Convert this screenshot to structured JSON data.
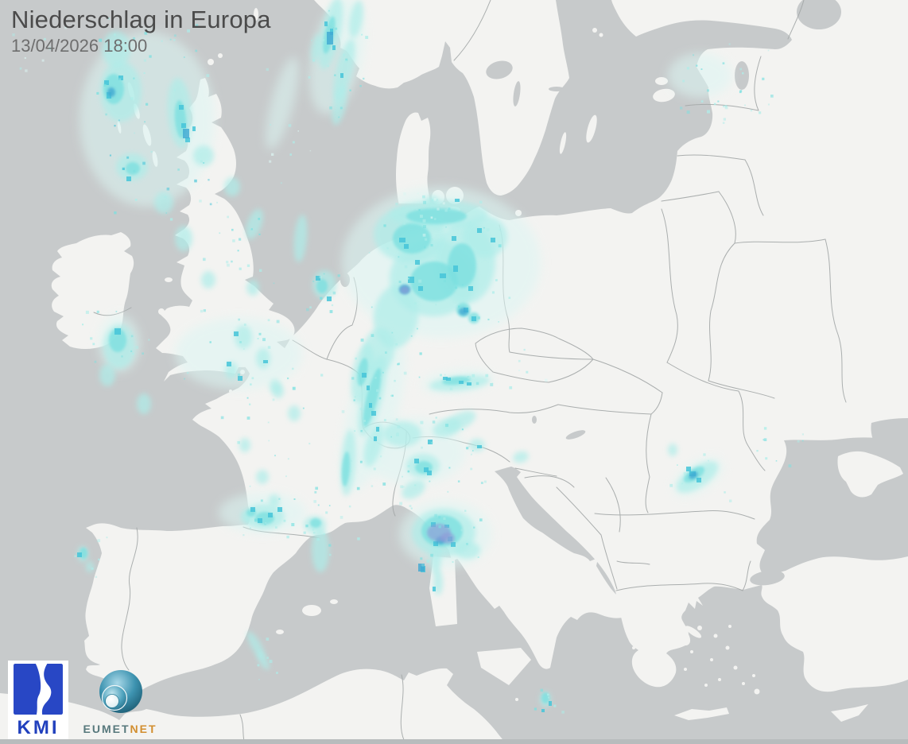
{
  "header": {
    "title": "Niederschlag in Europa",
    "timestamp": "13/04/2026 18:00"
  },
  "logos": {
    "kmi": {
      "label": "KMI",
      "blue": "#2847c5",
      "text_blue": "#2140bd"
    },
    "eumetnet": {
      "label_left": "EUMET",
      "label_right": "NET",
      "teal": "#57787c",
      "orange": "#d28e2f",
      "sphere_dark": "#256d86",
      "sphere_mid": "#3d93b0",
      "sphere_light": "#a8d8e8"
    }
  },
  "map": {
    "kind": "precipitation-radar",
    "region": "Europe",
    "colors": {
      "sea": "#c7cacb",
      "land": "#f3f3f1",
      "border": "#a3a7a7",
      "bottom_strip": "#b8bcbd",
      "precip_levels": [
        "#dcf6f3",
        "#aeede9",
        "#7ce0e0",
        "#45c4d8",
        "#3fa8d2",
        "#8f9bd8"
      ]
    },
    "precipitation_cells": [
      [
        555,
        330,
        125,
        95,
        0,
        1
      ],
      [
        470,
        515,
        30,
        105,
        15,
        1
      ],
      [
        560,
        672,
        58,
        42,
        0,
        1
      ],
      [
        424,
        70,
        32,
        75,
        12,
        1
      ],
      [
        185,
        150,
        85,
        110,
        0,
        1
      ],
      [
        520,
        568,
        65,
        42,
        0,
        1
      ],
      [
        355,
        130,
        14,
        60,
        15,
        1
      ],
      [
        150,
        432,
        26,
        36,
        0,
        1
      ],
      [
        300,
        445,
        80,
        45,
        0,
        1
      ],
      [
        330,
        645,
        55,
        25,
        0,
        1
      ],
      [
        878,
        600,
        35,
        18,
        -33,
        1
      ],
      [
        880,
        95,
        40,
        28,
        0,
        1
      ],
      [
        575,
        480,
        45,
        14,
        -6,
        1
      ],
      [
        515,
        295,
        45,
        35,
        0,
        2
      ],
      [
        545,
        350,
        55,
        48,
        0,
        2
      ],
      [
        585,
        330,
        38,
        52,
        0,
        2
      ],
      [
        610,
        298,
        28,
        26,
        0,
        2
      ],
      [
        552,
        270,
        62,
        18,
        0,
        2
      ],
      [
        498,
        398,
        28,
        40,
        8,
        2
      ],
      [
        476,
        442,
        20,
        30,
        10,
        2
      ],
      [
        378,
        300,
        8,
        30,
        5,
        2
      ],
      [
        408,
        358,
        15,
        18,
        0,
        2
      ],
      [
        416,
        42,
        12,
        46,
        12,
        2
      ],
      [
        433,
        88,
        10,
        40,
        14,
        2
      ],
      [
        448,
        24,
        8,
        24,
        10,
        2
      ],
      [
        427,
        132,
        8,
        26,
        12,
        2
      ],
      [
        398,
        60,
        6,
        18,
        10,
        2
      ],
      [
        152,
        115,
        26,
        38,
        0,
        2
      ],
      [
        226,
        142,
        15,
        44,
        -4,
        2
      ],
      [
        166,
        210,
        20,
        17,
        0,
        2
      ],
      [
        146,
        62,
        18,
        23,
        0,
        2
      ],
      [
        256,
        196,
        13,
        13,
        0,
        2
      ],
      [
        231,
        300,
        11,
        16,
        0,
        2
      ],
      [
        320,
        282,
        9,
        20,
        20,
        2
      ],
      [
        292,
        235,
        10,
        12,
        0,
        2
      ],
      [
        206,
        255,
        12,
        14,
        0,
        2
      ],
      [
        150,
        436,
        20,
        28,
        0,
        2
      ],
      [
        135,
        472,
        10,
        14,
        0,
        2
      ],
      [
        306,
        424,
        11,
        15,
        0,
        2
      ],
      [
        331,
        451,
        9,
        13,
        0,
        2
      ],
      [
        291,
        466,
        8,
        11,
        0,
        2
      ],
      [
        346,
        486,
        7,
        9,
        0,
        2
      ],
      [
        262,
        352,
        9,
        11,
        0,
        2
      ],
      [
        318,
        362,
        8,
        10,
        0,
        2
      ],
      [
        456,
        470,
        13,
        38,
        10,
        2
      ],
      [
        468,
        498,
        13,
        52,
        14,
        2
      ],
      [
        438,
        582,
        9,
        42,
        4,
        2
      ],
      [
        470,
        560,
        10,
        28,
        16,
        2
      ],
      [
        403,
        692,
        11,
        28,
        0,
        2
      ],
      [
        332,
        650,
        26,
        16,
        0,
        2
      ],
      [
        396,
        660,
        14,
        11,
        0,
        2
      ],
      [
        370,
        520,
        8,
        10,
        0,
        2
      ],
      [
        350,
        492,
        7,
        9,
        0,
        2
      ],
      [
        308,
        560,
        7,
        9,
        0,
        2
      ],
      [
        330,
        600,
        8,
        9,
        0,
        2
      ],
      [
        345,
        630,
        7,
        8,
        0,
        2
      ],
      [
        310,
        650,
        7,
        8,
        0,
        2
      ],
      [
        506,
        546,
        24,
        16,
        0,
        2
      ],
      [
        532,
        586,
        21,
        15,
        0,
        2
      ],
      [
        562,
        538,
        18,
        11,
        -20,
        2
      ],
      [
        578,
        530,
        22,
        10,
        -25,
        2
      ],
      [
        600,
        560,
        10,
        8,
        0,
        2
      ],
      [
        520,
        616,
        16,
        10,
        -30,
        2
      ],
      [
        655,
        575,
        10,
        7,
        -15,
        2
      ],
      [
        578,
        482,
        38,
        9,
        -6,
        2
      ],
      [
        558,
        670,
        40,
        30,
        0,
        2
      ],
      [
        588,
        692,
        16,
        11,
        0,
        2
      ],
      [
        548,
        700,
        7,
        24,
        0,
        2
      ],
      [
        551,
        733,
        6,
        16,
        0,
        2
      ],
      [
        322,
        812,
        6,
        20,
        -30,
        2
      ],
      [
        331,
        831,
        5,
        13,
        -30,
        2
      ],
      [
        104,
        697,
        7,
        10,
        0,
        2
      ],
      [
        113,
        713,
        5,
        7,
        0,
        2
      ],
      [
        181,
        508,
        9,
        13,
        0,
        2
      ],
      [
        877,
        600,
        30,
        13,
        -33,
        2
      ],
      [
        846,
        566,
        6,
        8,
        0,
        2
      ],
      [
        520,
        286,
        15,
        9,
        -20,
        2
      ],
      [
        543,
        256,
        9,
        10,
        0,
        2
      ],
      [
        686,
        880,
        7,
        10,
        0,
        2
      ],
      [
        518,
        300,
        24,
        19,
        0,
        3
      ],
      [
        546,
        354,
        30,
        25,
        0,
        3
      ],
      [
        581,
        334,
        18,
        28,
        0,
        3
      ],
      [
        549,
        272,
        38,
        10,
        0,
        3
      ],
      [
        556,
        668,
        26,
        20,
        0,
        3
      ],
      [
        148,
        428,
        11,
        15,
        0,
        3
      ],
      [
        143,
        112,
        13,
        19,
        0,
        3
      ],
      [
        227,
        150,
        7,
        24,
        -4,
        3
      ],
      [
        468,
        500,
        7,
        38,
        14,
        3
      ],
      [
        456,
        468,
        6,
        18,
        10,
        3
      ],
      [
        533,
        588,
        11,
        8,
        0,
        3
      ],
      [
        873,
        597,
        15,
        7,
        -33,
        3
      ],
      [
        414,
        44,
        6,
        24,
        12,
        3
      ],
      [
        397,
        658,
        7,
        6,
        0,
        3
      ],
      [
        316,
        645,
        6,
        5,
        0,
        3
      ],
      [
        105,
        696,
        5,
        7,
        0,
        3
      ],
      [
        686,
        878,
        5,
        7,
        0,
        3
      ],
      [
        574,
        479,
        18,
        5,
        -6,
        3
      ],
      [
        405,
        360,
        7,
        9,
        0,
        3
      ],
      [
        167,
        212,
        9,
        8,
        0,
        3
      ],
      [
        435,
        590,
        5,
        22,
        4,
        3
      ],
      [
        333,
        652,
        12,
        8,
        0,
        3
      ],
      [
        583,
        390,
        9,
        9,
        0,
        3
      ],
      [
        596,
        400,
        7,
        7,
        0,
        3
      ],
      [
        506,
        302,
        4,
        3,
        0,
        4
      ],
      [
        517,
        352,
        4,
        4,
        0,
        4
      ],
      [
        529,
        363,
        3,
        3,
        0,
        4
      ],
      [
        573,
        338,
        3,
        4,
        0,
        4
      ],
      [
        586,
        390,
        3,
        3,
        0,
        4
      ],
      [
        596,
        401,
        3,
        3,
        0,
        4
      ],
      [
        620,
        302,
        3,
        3,
        0,
        4
      ],
      [
        575,
        252,
        3,
        2,
        0,
        4
      ],
      [
        414,
        376,
        3,
        3,
        0,
        4
      ],
      [
        288,
        458,
        3,
        3,
        0,
        4
      ],
      [
        302,
        476,
        3,
        3,
        0,
        4
      ],
      [
        541,
        556,
        3,
        3,
        0,
        4
      ],
      [
        536,
        591,
        3,
        3,
        0,
        4
      ],
      [
        532,
        716,
        3,
        4,
        0,
        4
      ],
      [
        871,
        596,
        4,
        3,
        0,
        4
      ],
      [
        879,
        604,
        3,
        3,
        0,
        4
      ],
      [
        318,
        641,
        3,
        3,
        0,
        4
      ],
      [
        352,
        641,
        3,
        3,
        0,
        4
      ],
      [
        100,
        698,
        3,
        3,
        0,
        4
      ],
      [
        692,
        885,
        2,
        3,
        0,
        4
      ],
      [
        683,
        894,
        2,
        2,
        0,
        4
      ],
      [
        566,
        678,
        3,
        3,
        0,
        4
      ],
      [
        137,
        120,
        3,
        4,
        0,
        4
      ],
      [
        231,
        158,
        3,
        3,
        0,
        4
      ],
      [
        236,
        176,
        3,
        3,
        0,
        4
      ],
      [
        148,
        417,
        4,
        4,
        0,
        4
      ],
      [
        564,
        477,
        3,
        2,
        0,
        4
      ],
      [
        590,
        483,
        3,
        2,
        0,
        4
      ],
      [
        228,
        135,
        3,
        3,
        0,
        4
      ],
      [
        244,
        162,
        2,
        3,
        0,
        4
      ],
      [
        134,
        104,
        3,
        3,
        0,
        4
      ],
      [
        458,
        472,
        3,
        3,
        0,
        4
      ],
      [
        470,
        520,
        3,
        3,
        0,
        4
      ],
      [
        475,
        540,
        2,
        3,
        0,
        4
      ],
      [
        410,
        30,
        2,
        3,
        0,
        4
      ],
      [
        420,
        60,
        2,
        3,
        0,
        4
      ],
      [
        546,
        741,
        2,
        3,
        0,
        4
      ],
      [
        297,
        420,
        3,
        3,
        0,
        4
      ],
      [
        334,
        455,
        3,
        2,
        0,
        4
      ],
      [
        152,
        98,
        3,
        3,
        0,
        4
      ],
      [
        162,
        225,
        3,
        3,
        0,
        4
      ],
      [
        417,
        40,
        2,
        4,
        0,
        4
      ],
      [
        430,
        95,
        2,
        3,
        0,
        4
      ],
      [
        511,
        310,
        3,
        3,
        0,
        4
      ],
      [
        525,
        330,
        3,
        3,
        0,
        4
      ],
      [
        557,
        347,
        4,
        3,
        0,
        4
      ],
      [
        592,
        363,
        3,
        3,
        0,
        4
      ],
      [
        603,
        290,
        3,
        3,
        0,
        4
      ],
      [
        571,
        300,
        3,
        3,
        0,
        4
      ],
      [
        463,
        488,
        2,
        3,
        0,
        4
      ],
      [
        466,
        510,
        2,
        3,
        0,
        4
      ],
      [
        472,
        552,
        2,
        3,
        0,
        4
      ],
      [
        400,
        350,
        3,
        3,
        0,
        4
      ],
      [
        866,
        590,
        3,
        3,
        0,
        4
      ],
      [
        524,
        580,
        3,
        3,
        0,
        4
      ],
      [
        540,
        595,
        3,
        3,
        0,
        4
      ],
      [
        603,
        562,
        3,
        2,
        0,
        4
      ],
      [
        545,
        660,
        3,
        3,
        0,
        4
      ],
      [
        562,
        662,
        3,
        2,
        0,
        4
      ],
      [
        570,
        685,
        3,
        3,
        0,
        4
      ],
      [
        548,
        684,
        3,
        3,
        0,
        4
      ],
      [
        327,
        655,
        3,
        3,
        0,
        4
      ],
      [
        340,
        648,
        3,
        3,
        0,
        4
      ],
      [
        560,
        476,
        3,
        2,
        0,
        4
      ],
      [
        580,
        481,
        3,
        2,
        0,
        4
      ],
      [
        509,
        364,
        7,
        6,
        0,
        5
      ],
      [
        583,
        392,
        6,
        5,
        0,
        5
      ],
      [
        530,
        714,
        4,
        5,
        0,
        5
      ],
      [
        234,
        168,
        4,
        6,
        0,
        5
      ],
      [
        140,
        116,
        5,
        6,
        0,
        5
      ],
      [
        872,
        598,
        6,
        4,
        -33,
        5
      ],
      [
        415,
        48,
        4,
        8,
        12,
        5
      ],
      [
        554,
        680,
        6,
        5,
        0,
        5
      ],
      [
        552,
        670,
        15,
        11,
        0,
        6
      ],
      [
        563,
        677,
        9,
        7,
        0,
        6
      ],
      [
        509,
        365,
        6,
        5,
        0,
        6
      ]
    ],
    "speckle_regions": [
      [
        10,
        30,
        85,
        65,
        10,
        [
          1,
          2
        ]
      ],
      [
        120,
        20,
        140,
        130,
        26,
        [
          2,
          3
        ]
      ],
      [
        130,
        150,
        140,
        120,
        22,
        [
          2,
          3,
          4
        ]
      ],
      [
        210,
        250,
        120,
        90,
        16,
        [
          2,
          3
        ]
      ],
      [
        100,
        380,
        90,
        80,
        14,
        [
          2,
          3
        ]
      ],
      [
        230,
        330,
        140,
        160,
        20,
        [
          2,
          3
        ]
      ],
      [
        300,
        50,
        100,
        180,
        12,
        [
          1,
          2
        ]
      ],
      [
        390,
        10,
        70,
        140,
        18,
        [
          2,
          3
        ]
      ],
      [
        495,
        240,
        70,
        60,
        10,
        [
          1,
          2
        ]
      ],
      [
        460,
        250,
        180,
        170,
        40,
        [
          2,
          3
        ]
      ],
      [
        450,
        400,
        80,
        90,
        14,
        [
          2,
          3
        ]
      ],
      [
        385,
        330,
        60,
        70,
        10,
        [
          2,
          3
        ]
      ],
      [
        270,
        420,
        180,
        240,
        30,
        [
          2,
          3
        ]
      ],
      [
        440,
        440,
        60,
        180,
        22,
        [
          2,
          3
        ]
      ],
      [
        490,
        520,
        130,
        90,
        20,
        [
          2,
          3
        ]
      ],
      [
        500,
        595,
        70,
        45,
        8,
        [
          2
        ]
      ],
      [
        520,
        640,
        90,
        70,
        16,
        [
          2,
          3
        ]
      ],
      [
        300,
        625,
        120,
        60,
        16,
        [
          2,
          3
        ]
      ],
      [
        390,
        640,
        60,
        60,
        8,
        [
          2
        ]
      ],
      [
        850,
        45,
        120,
        100,
        22,
        [
          2,
          3
        ]
      ],
      [
        895,
        120,
        50,
        50,
        8,
        [
          2,
          3
        ]
      ],
      [
        950,
        525,
        60,
        60,
        10,
        [
          2,
          3
        ]
      ],
      [
        840,
        570,
        80,
        60,
        8,
        [
          2
        ]
      ],
      [
        530,
        240,
        40,
        40,
        6,
        [
          1,
          2
        ]
      ],
      [
        85,
        675,
        50,
        50,
        6,
        [
          2
        ]
      ],
      [
        310,
        800,
        40,
        55,
        6,
        [
          2
        ]
      ],
      [
        670,
        865,
        40,
        40,
        6,
        [
          2,
          3
        ]
      ],
      [
        545,
        470,
        90,
        20,
        10,
        [
          2,
          3
        ]
      ],
      [
        640,
        430,
        60,
        60,
        6,
        [
          1,
          2
        ]
      ]
    ]
  }
}
